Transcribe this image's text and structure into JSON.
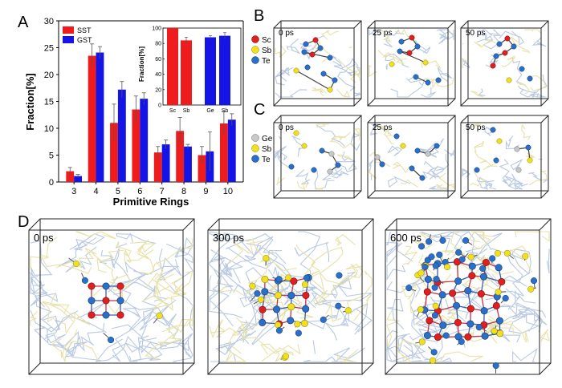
{
  "panels": {
    "a": "A",
    "b": "B",
    "c": "C",
    "d": "D"
  },
  "colors": {
    "sst": "#ee1c1c",
    "gst": "#1414e6",
    "sc": "#e02020",
    "sb": "#f0e020",
    "te": "#2a6fc9",
    "ge": "#c8c8c8"
  },
  "chart_data": [
    {
      "type": "bar",
      "panel": "A",
      "title": "",
      "xlabel": "Primitive Rings",
      "ylabel": "Fraction[%]",
      "categories": [
        "3",
        "4",
        "5",
        "6",
        "7",
        "8",
        "9",
        "10"
      ],
      "ylim": [
        0,
        30
      ],
      "yticks": [
        "0",
        "5",
        "10",
        "15",
        "20",
        "25",
        "30"
      ],
      "legend_position": "top-left",
      "series": [
        {
          "name": "SST",
          "values": [
            2.0,
            23.5,
            11.0,
            13.5,
            5.5,
            9.5,
            5.0,
            10.9
          ],
          "errors": [
            0.7,
            2.2,
            3.5,
            2.5,
            1.1,
            2.5,
            1.6,
            2.2
          ]
        },
        {
          "name": "GST",
          "values": [
            1.1,
            24.1,
            17.2,
            15.5,
            7.0,
            6.6,
            5.7,
            11.6
          ],
          "errors": [
            0.3,
            1.1,
            1.5,
            1.1,
            0.8,
            0.4,
            3.6,
            1.1
          ]
        }
      ]
    },
    {
      "type": "bar",
      "panel": "A-inset",
      "title": "",
      "xlabel": "",
      "ylabel": "Fraction[%]",
      "categories": [
        "Sc",
        "Sb",
        "Ge",
        "Sb"
      ],
      "ylim": [
        0,
        100
      ],
      "yticks": [
        "0",
        "20",
        "40",
        "60",
        "80",
        "100"
      ],
      "values": [
        100,
        84,
        88,
        90
      ],
      "errors": [
        0,
        4,
        2,
        4
      ],
      "bar_colors": [
        "#ee1c1c",
        "#ee1c1c",
        "#1414e6",
        "#1414e6"
      ]
    }
  ],
  "panel_b": {
    "snapshots": [
      "0 ps",
      "25 ps",
      "50 ps"
    ],
    "legend": [
      "Sc",
      "Sb",
      "Te"
    ]
  },
  "panel_c": {
    "snapshots": [
      "0 ps",
      "25 ps",
      "50 ps"
    ],
    "legend": [
      "Ge",
      "Sb",
      "Te"
    ]
  },
  "panel_d": {
    "snapshots": [
      "0 ps",
      "300 ps",
      "600 ps"
    ]
  }
}
